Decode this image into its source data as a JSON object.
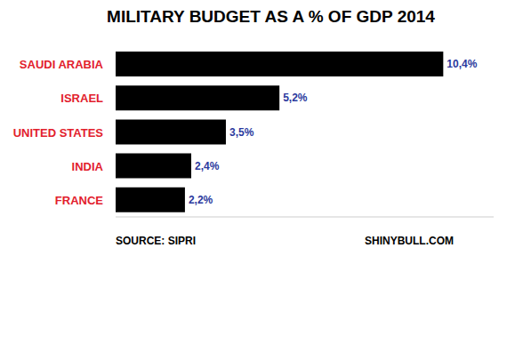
{
  "chart_data": {
    "type": "bar",
    "title": "MILITARY BUDGET AS A % OF GDP 2014",
    "orientation": "horizontal",
    "categories": [
      "SAUDI ARABIA",
      "ISRAEL",
      "UNITED STATES",
      "INDIA",
      "FRANCE"
    ],
    "values": [
      10.4,
      5.2,
      3.5,
      2.4,
      2.2
    ],
    "value_labels": [
      "10,4%",
      "5,2%",
      "3,5%",
      "2,4%",
      "2,2%"
    ],
    "data_labels": true,
    "color": "#000000",
    "xlim": [
      0,
      12
    ],
    "tick_labels": "y",
    "grid": false,
    "source": "SOURCE: SIPRI",
    "credit": "SHINYBULL.COM"
  }
}
